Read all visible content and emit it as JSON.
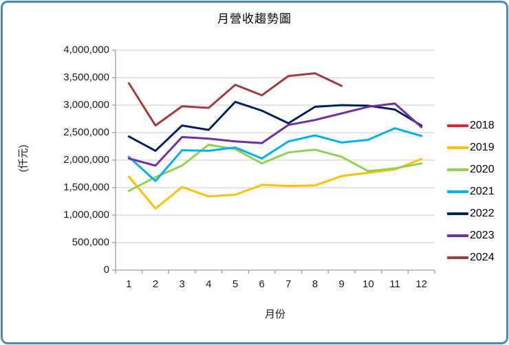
{
  "chart_data": {
    "type": "line",
    "title": "月營收趨勢圖",
    "ylabel": "(仟元)",
    "xlabel": "月份",
    "categories": [
      "1",
      "2",
      "3",
      "4",
      "5",
      "6",
      "7",
      "8",
      "9",
      "10",
      "11",
      "12"
    ],
    "ylim": [
      0,
      4000000
    ],
    "y_tick_step": 500000,
    "y_tick_labels": [
      "0",
      "500,000",
      "1,000,000",
      "1,500,000",
      "2,000,000",
      "2,500,000",
      "3,000,000",
      "3,500,000",
      "4,000,000"
    ],
    "grid": true,
    "legend_position": "right",
    "series": [
      {
        "name": "2018",
        "color": "#E2262C",
        "values": [
          null,
          null,
          null,
          null,
          null,
          null,
          null,
          null,
          null,
          null,
          null,
          null
        ]
      },
      {
        "name": "2019",
        "color": "#FFC000",
        "values": [
          1700000,
          1120000,
          1510000,
          1340000,
          1370000,
          1550000,
          1530000,
          1540000,
          1710000,
          1770000,
          1830000,
          2020000
        ]
      },
      {
        "name": "2020",
        "color": "#92D050",
        "values": [
          1440000,
          1690000,
          1900000,
          2280000,
          2200000,
          1940000,
          2140000,
          2190000,
          2060000,
          1800000,
          1850000,
          1940000
        ]
      },
      {
        "name": "2021",
        "color": "#00B0F0",
        "values": [
          2060000,
          1620000,
          2180000,
          2170000,
          2230000,
          2030000,
          2340000,
          2450000,
          2320000,
          2370000,
          2580000,
          2440000
        ]
      },
      {
        "name": "2022",
        "color": "#002060",
        "values": [
          2430000,
          2170000,
          2630000,
          2550000,
          3060000,
          2900000,
          2670000,
          2970000,
          3000000,
          2990000,
          2920000,
          2630000
        ]
      },
      {
        "name": "2023",
        "color": "#7030A0",
        "values": [
          2030000,
          1900000,
          2420000,
          2390000,
          2340000,
          2310000,
          2640000,
          2730000,
          2850000,
          2970000,
          3030000,
          2600000
        ]
      },
      {
        "name": "2024",
        "color": "#A23B3B",
        "values": [
          3400000,
          2630000,
          2980000,
          2950000,
          3370000,
          3180000,
          3530000,
          3580000,
          3350000,
          null,
          null,
          null
        ]
      }
    ]
  },
  "colors": {
    "frame_border": "#4A86C8",
    "gridline": "#C9C9C9",
    "axis": "#9C9C9C",
    "tick_text": "#1a1a1a"
  }
}
